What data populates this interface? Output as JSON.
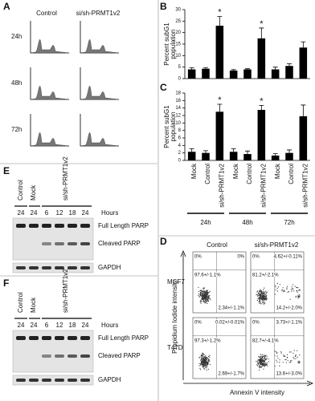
{
  "panel_labels": [
    "A",
    "B",
    "C",
    "D",
    "E",
    "F"
  ],
  "chart_data": [
    {
      "type": "bar",
      "ylabel": [
        "Percent subG1",
        "population"
      ],
      "values": [
        4,
        4.3,
        23,
        3.5,
        4,
        17.5,
        4,
        5.5,
        13.5
      ],
      "errors": [
        0.7,
        0.5,
        4,
        0.4,
        0.3,
        4.5,
        1,
        1,
        2.5
      ],
      "markers": [
        null,
        null,
        "*",
        null,
        null,
        "*",
        null,
        null,
        null
      ],
      "color": "#000000",
      "ylim": [
        0,
        30
      ],
      "yticks": [
        0,
        5,
        10,
        15,
        20,
        25,
        30
      ]
    },
    {
      "type": "bar",
      "ylabel": [
        "Percent subG1",
        "population"
      ],
      "categories": [
        "Mock",
        "Control",
        "si/sh-PRMT1v2",
        "Mock",
        "Control",
        "si/sh-PRMT1v2",
        "Mock",
        "Control",
        "si/sh-PRMT1v2"
      ],
      "groups": [
        "24h",
        "48h",
        "72h"
      ],
      "values": [
        2.3,
        2,
        13,
        2.3,
        1.7,
        13.5,
        1.3,
        2,
        11.8
      ],
      "errors": [
        0.8,
        0.6,
        2,
        0.8,
        0.8,
        1.2,
        0.5,
        0.8,
        3
      ],
      "markers": [
        null,
        null,
        "*",
        null,
        null,
        "*",
        null,
        null,
        null
      ],
      "color": "#000000",
      "ylim": [
        0,
        18
      ],
      "yticks": [
        0,
        2,
        4,
        6,
        8,
        10,
        12,
        14,
        16,
        18
      ]
    }
  ],
  "cell_cycle": {
    "columns": [
      "Control",
      "si/sh-PRMT1v2"
    ],
    "rows": [
      "24h",
      "48h",
      "72h"
    ]
  },
  "blots": [
    {
      "lanes": [
        "Control",
        "Mock",
        "si/sh-PRMT1v2"
      ],
      "hours": [
        "24",
        "24",
        "6",
        "12",
        "18",
        "24"
      ],
      "hours_label": "Hours",
      "bands": [
        "Full Length PARP",
        "Cleaved PARP",
        "GAPDH"
      ]
    },
    {
      "lanes": [
        "Control",
        "Mock",
        "si/sh-PRMT1v2"
      ],
      "hours": [
        "24",
        "24",
        "6",
        "12",
        "18",
        "24"
      ],
      "hours_label": "Hours",
      "bands": [
        "Full Length PARP",
        "Cleaved PARP",
        "GAPDH"
      ]
    }
  ],
  "flow": {
    "columns": [
      "Control",
      "si/sh-PRMT1v2"
    ],
    "y_label": "Propidium Iodide intensity",
    "x_label": "Annexin V intensity",
    "rows": [
      {
        "label": "MCF7",
        "panels": [
          {
            "quadrants": [
              "0%",
              "0%",
              "97.6+/-1.1%",
              "2.34+/-1.1%"
            ]
          },
          {
            "quadrants": [
              "0%",
              "4.62+/-0.11%",
              "81.2+/-2.1%",
              "14.2+/-2.0%"
            ],
            "mark": "*"
          }
        ]
      },
      {
        "label": "T47D",
        "panels": [
          {
            "quadrants": [
              "0%",
              "0.02+/-0.01%",
              "97.3+/-1.2%",
              "2.69+/-1.7%"
            ]
          },
          {
            "quadrants": [
              "0%",
              "3.73+/-1.1%",
              "82.7+/-4.1%",
              "13.6+/-3.0%"
            ],
            "mark": "*"
          }
        ]
      }
    ]
  }
}
